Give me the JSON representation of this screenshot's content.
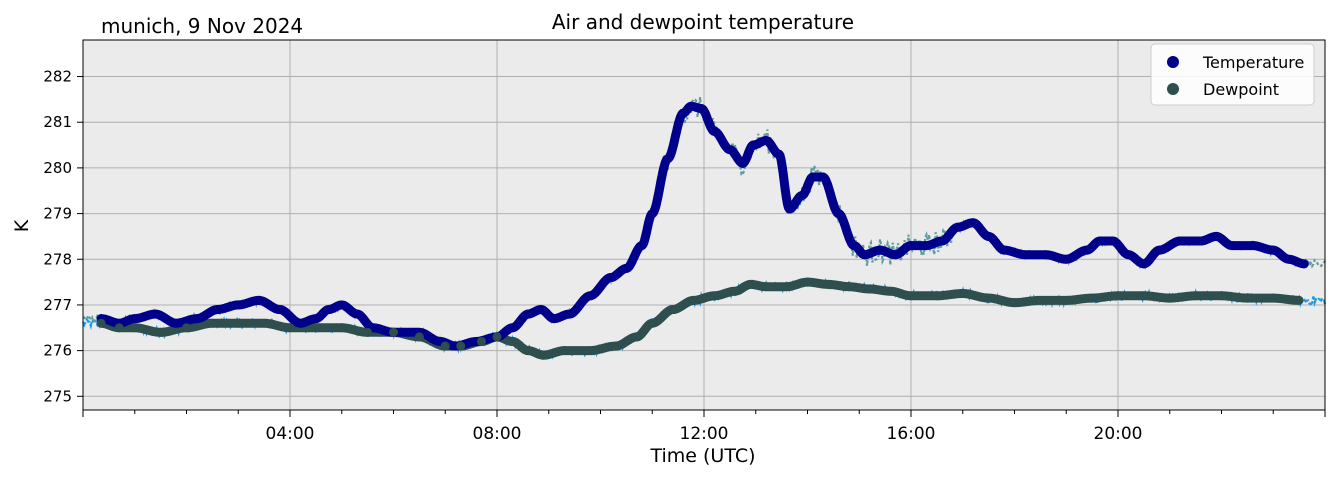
{
  "chart_data": {
    "type": "line",
    "title": "Air and dewpoint temperature",
    "subtitle": "munich, 9 Nov 2024",
    "xlabel": "Time (UTC)",
    "ylabel": "K",
    "x_unit": "hours UTC",
    "xlim": [
      0,
      24
    ],
    "ylim": [
      274.7,
      282.8
    ],
    "x_ticks": [
      4,
      8,
      12,
      16,
      20
    ],
    "x_tick_labels": [
      "04:00",
      "08:00",
      "12:00",
      "16:00",
      "20:00"
    ],
    "y_ticks": [
      275,
      276,
      277,
      278,
      279,
      280,
      281,
      282
    ],
    "y_tick_labels": [
      "275",
      "276",
      "277",
      "278",
      "279",
      "280",
      "281",
      "282"
    ],
    "grid": true,
    "legend_position": "top-right",
    "legend": [
      "Temperature",
      "Dewpoint"
    ],
    "colors": {
      "plot_background": "#ebebeb",
      "grid": "#b0b0b0",
      "temperature_smooth": "#00008b",
      "temperature_raw": "#5f9ea0",
      "dewpoint_smooth": "#2f4f4f",
      "dewpoint_raw": "#1e9be8"
    },
    "series": [
      {
        "name": "Temperature",
        "style": "smoothed markers",
        "x": [
          0.35,
          0.7,
          1.0,
          1.4,
          1.8,
          2.2,
          2.6,
          3.0,
          3.4,
          3.8,
          4.2,
          4.5,
          4.75,
          5.0,
          5.3,
          5.6,
          6.0,
          6.5,
          6.9,
          7.2,
          7.6,
          8.0,
          8.3,
          8.6,
          8.85,
          9.1,
          9.4,
          9.8,
          10.2,
          10.5,
          10.8,
          11.0,
          11.3,
          11.6,
          11.75,
          11.95,
          12.2,
          12.5,
          12.75,
          12.95,
          13.2,
          13.45,
          13.65,
          13.9,
          14.1,
          14.3,
          14.6,
          14.9,
          15.1,
          15.4,
          15.7,
          16.0,
          16.3,
          16.6,
          16.9,
          17.2,
          17.5,
          17.8,
          18.2,
          18.6,
          19.0,
          19.4,
          19.65,
          19.9,
          20.2,
          20.5,
          20.8,
          21.2,
          21.6,
          21.9,
          22.2,
          22.6,
          23.0,
          23.3,
          23.6
        ],
        "values": [
          276.7,
          276.6,
          276.7,
          276.8,
          276.6,
          276.7,
          276.9,
          277.0,
          277.1,
          276.9,
          276.6,
          276.7,
          276.9,
          277.0,
          276.8,
          276.5,
          276.4,
          276.4,
          276.2,
          276.1,
          276.2,
          276.3,
          276.5,
          276.8,
          276.9,
          276.7,
          276.8,
          277.2,
          277.6,
          277.8,
          278.3,
          279.0,
          280.2,
          281.2,
          281.35,
          281.3,
          280.8,
          280.4,
          280.1,
          280.5,
          280.6,
          280.3,
          279.1,
          279.4,
          279.8,
          279.8,
          279.0,
          278.3,
          278.1,
          278.2,
          278.1,
          278.3,
          278.3,
          278.4,
          278.7,
          278.8,
          278.5,
          278.2,
          278.1,
          278.1,
          278.0,
          278.2,
          278.4,
          278.4,
          278.1,
          277.9,
          278.2,
          278.4,
          278.4,
          278.5,
          278.3,
          278.3,
          278.2,
          278.0,
          277.9
        ]
      },
      {
        "name": "Dewpoint",
        "style": "smoothed markers",
        "x": [
          0.35,
          0.7,
          1.0,
          1.5,
          2.0,
          2.5,
          3.0,
          3.5,
          4.0,
          4.5,
          5.0,
          5.5,
          6.0,
          6.5,
          7.0,
          7.3,
          7.7,
          8.0,
          8.3,
          8.6,
          8.9,
          9.3,
          9.8,
          10.3,
          10.7,
          11.0,
          11.4,
          11.8,
          12.2,
          12.6,
          12.9,
          13.2,
          13.6,
          14.0,
          14.4,
          14.8,
          15.2,
          15.6,
          16.0,
          16.5,
          17.0,
          17.5,
          18.0,
          18.5,
          19.0,
          19.5,
          20.0,
          20.5,
          21.0,
          21.5,
          22.0,
          22.5,
          23.0,
          23.5
        ],
        "values": [
          276.6,
          276.5,
          276.5,
          276.4,
          276.5,
          276.6,
          276.6,
          276.6,
          276.5,
          276.5,
          276.5,
          276.4,
          276.4,
          276.3,
          276.1,
          276.1,
          276.2,
          276.3,
          276.2,
          276.0,
          275.9,
          276.0,
          276.0,
          276.1,
          276.3,
          276.6,
          276.9,
          277.1,
          277.2,
          277.3,
          277.45,
          277.4,
          277.4,
          277.5,
          277.45,
          277.4,
          277.35,
          277.3,
          277.2,
          277.2,
          277.25,
          277.15,
          277.05,
          277.1,
          277.1,
          277.15,
          277.2,
          277.2,
          277.15,
          277.2,
          277.2,
          277.15,
          277.15,
          277.1
        ]
      }
    ]
  }
}
